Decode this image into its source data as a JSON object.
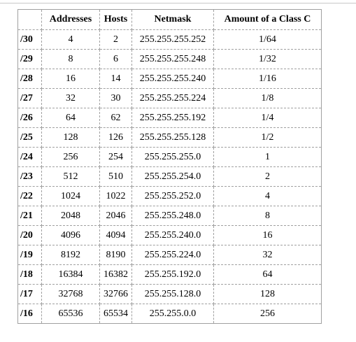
{
  "table": {
    "headers": [
      "",
      "Addresses",
      "Hosts",
      "Netmask",
      "Amount of a Class C"
    ],
    "rows": [
      {
        "prefix": "/30",
        "addresses": "4",
        "hosts": "2",
        "netmask": "255.255.255.252",
        "class_c": "1/64"
      },
      {
        "prefix": "/29",
        "addresses": "8",
        "hosts": "6",
        "netmask": "255.255.255.248",
        "class_c": "1/32"
      },
      {
        "prefix": "/28",
        "addresses": "16",
        "hosts": "14",
        "netmask": "255.255.255.240",
        "class_c": "1/16"
      },
      {
        "prefix": "/27",
        "addresses": "32",
        "hosts": "30",
        "netmask": "255.255.255.224",
        "class_c": "1/8"
      },
      {
        "prefix": "/26",
        "addresses": "64",
        "hosts": "62",
        "netmask": "255.255.255.192",
        "class_c": "1/4"
      },
      {
        "prefix": "/25",
        "addresses": "128",
        "hosts": "126",
        "netmask": "255.255.255.128",
        "class_c": "1/2"
      },
      {
        "prefix": "/24",
        "addresses": "256",
        "hosts": "254",
        "netmask": "255.255.255.0",
        "class_c": "1"
      },
      {
        "prefix": "/23",
        "addresses": "512",
        "hosts": "510",
        "netmask": "255.255.254.0",
        "class_c": "2"
      },
      {
        "prefix": "/22",
        "addresses": "1024",
        "hosts": "1022",
        "netmask": "255.255.252.0",
        "class_c": "4"
      },
      {
        "prefix": "/21",
        "addresses": "2048",
        "hosts": "2046",
        "netmask": "255.255.248.0",
        "class_c": "8"
      },
      {
        "prefix": "/20",
        "addresses": "4096",
        "hosts": "4094",
        "netmask": "255.255.240.0",
        "class_c": "16"
      },
      {
        "prefix": "/19",
        "addresses": "8192",
        "hosts": "8190",
        "netmask": "255.255.224.0",
        "class_c": "32"
      },
      {
        "prefix": "/18",
        "addresses": "16384",
        "hosts": "16382",
        "netmask": "255.255.192.0",
        "class_c": "64"
      },
      {
        "prefix": "/17",
        "addresses": "32768",
        "hosts": "32766",
        "netmask": "255.255.128.0",
        "class_c": "128"
      },
      {
        "prefix": "/16",
        "addresses": "65536",
        "hosts": "65534",
        "netmask": "255.255.0.0",
        "class_c": "256"
      }
    ]
  }
}
